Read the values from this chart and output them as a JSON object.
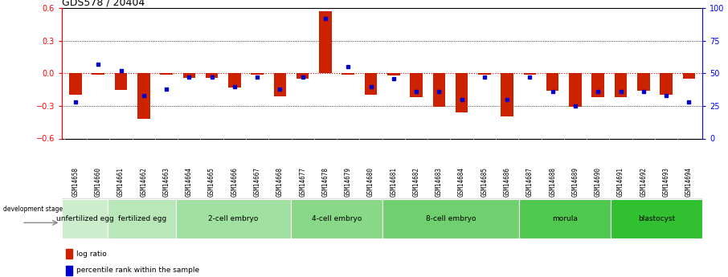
{
  "title": "GDS578 / 20404",
  "samples": [
    "GSM14658",
    "GSM14660",
    "GSM14661",
    "GSM14662",
    "GSM14663",
    "GSM14664",
    "GSM14665",
    "GSM14666",
    "GSM14667",
    "GSM14668",
    "GSM14677",
    "GSM14678",
    "GSM14679",
    "GSM14680",
    "GSM14681",
    "GSM14682",
    "GSM14683",
    "GSM14684",
    "GSM14685",
    "GSM14686",
    "GSM14687",
    "GSM14688",
    "GSM14689",
    "GSM14690",
    "GSM14691",
    "GSM14692",
    "GSM14693",
    "GSM14694"
  ],
  "log_ratio": [
    -0.2,
    -0.01,
    -0.15,
    -0.42,
    -0.01,
    -0.04,
    -0.04,
    -0.13,
    -0.01,
    -0.21,
    -0.05,
    0.57,
    -0.01,
    -0.2,
    -0.02,
    -0.22,
    -0.31,
    -0.36,
    -0.01,
    -0.4,
    -0.01,
    -0.16,
    -0.31,
    -0.22,
    -0.22,
    -0.16,
    -0.2,
    -0.05
  ],
  "percentile_rank": [
    28,
    57,
    52,
    33,
    38,
    47,
    47,
    40,
    47,
    38,
    47,
    92,
    55,
    40,
    46,
    36,
    36,
    30,
    47,
    30,
    47,
    36,
    25,
    36,
    36,
    36,
    33,
    28
  ],
  "stages": [
    {
      "label": "unfertilized egg",
      "start": 0,
      "end": 2,
      "color": "#cceecc"
    },
    {
      "label": "fertilized egg",
      "start": 2,
      "end": 5,
      "color": "#b8e8b8"
    },
    {
      "label": "2-cell embryo",
      "start": 5,
      "end": 10,
      "color": "#a0e0a0"
    },
    {
      "label": "4-cell embryo",
      "start": 10,
      "end": 14,
      "color": "#88d888"
    },
    {
      "label": "8-cell embryo",
      "start": 14,
      "end": 20,
      "color": "#70d070"
    },
    {
      "label": "morula",
      "start": 20,
      "end": 24,
      "color": "#50c850"
    },
    {
      "label": "blastocyst",
      "start": 24,
      "end": 28,
      "color": "#30c030"
    }
  ],
  "ylim_left": [
    -0.6,
    0.6
  ],
  "ylim_right": [
    0,
    100
  ],
  "yticks_left": [
    -0.6,
    -0.3,
    0.0,
    0.3,
    0.6
  ],
  "yticks_right": [
    0,
    25,
    50,
    75,
    100
  ],
  "bar_color": "#cc2200",
  "pct_color": "#0000cc",
  "bg_color": "#ffffff",
  "zero_line_color": "#cc0000",
  "grid_color": "#000000",
  "sample_bg_color": "#cccccc"
}
